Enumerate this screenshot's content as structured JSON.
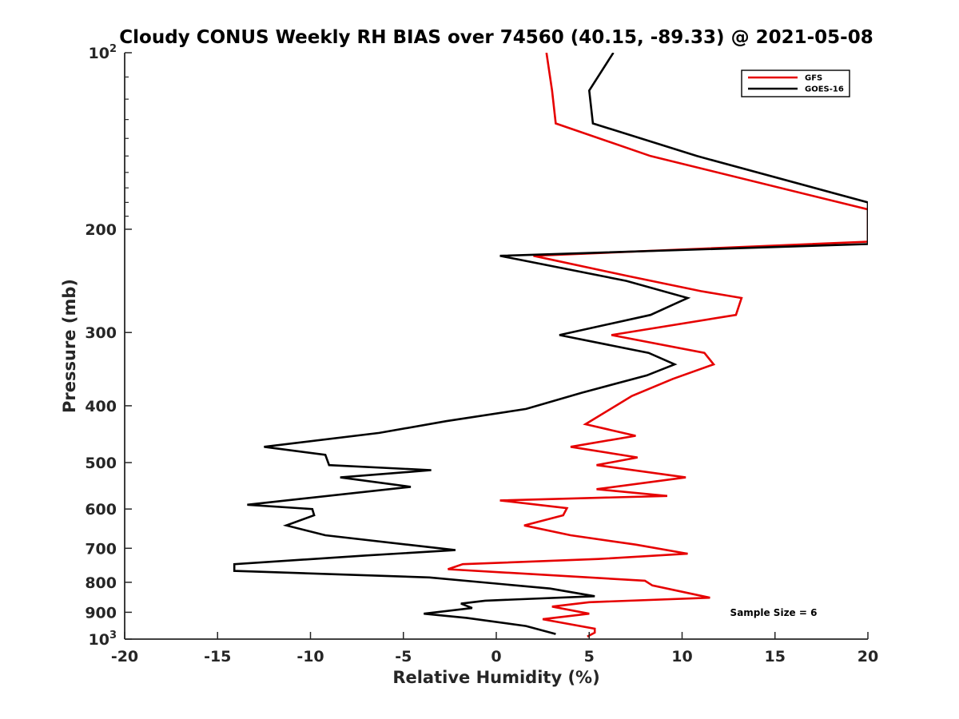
{
  "chart_data": {
    "type": "line",
    "title": "Cloudy CONUS Weekly RH BIAS over 74560 (40.15, -89.33) @ 2021-05-08",
    "xlabel": "Relative Humidity (%)",
    "ylabel": "Pressure (mb)",
    "xlim": [
      -20,
      20
    ],
    "ylim": [
      100,
      1000
    ],
    "y_scale": "log",
    "y_reversed": true,
    "grid": false,
    "legend_position": "top-right",
    "x_ticks": [
      "-20",
      "-15",
      "-10",
      "-5",
      "0",
      "5",
      "10",
      "15",
      "20"
    ],
    "y_ticks": [
      {
        "value": 100,
        "label": "10",
        "sup": "2"
      },
      {
        "value": 200,
        "label": "200"
      },
      {
        "value": 300,
        "label": "300"
      },
      {
        "value": 400,
        "label": "400"
      },
      {
        "value": 500,
        "label": "500"
      },
      {
        "value": 600,
        "label": "600"
      },
      {
        "value": 700,
        "label": "700"
      },
      {
        "value": 800,
        "label": "800"
      },
      {
        "value": 900,
        "label": "900"
      },
      {
        "value": 1000,
        "label": "10",
        "sup": "3"
      }
    ],
    "annotation": "Sample Size = 6",
    "series": [
      {
        "name": "GFS",
        "color": "#e60000",
        "points": [
          [
            2.7,
            100
          ],
          [
            3.0,
            116
          ],
          [
            3.2,
            132
          ],
          [
            8.3,
            150
          ],
          [
            20,
            185
          ],
          [
            20,
            210
          ],
          [
            2.0,
            222
          ],
          [
            7.0,
            240
          ],
          [
            11.0,
            255
          ],
          [
            13.2,
            262
          ],
          [
            12.9,
            280
          ],
          [
            6.2,
            303
          ],
          [
            11.2,
            325
          ],
          [
            11.7,
            340
          ],
          [
            9.5,
            360
          ],
          [
            7.3,
            385
          ],
          [
            4.8,
            430
          ],
          [
            7.5,
            450
          ],
          [
            4.0,
            470
          ],
          [
            7.6,
            490
          ],
          [
            5.4,
            505
          ],
          [
            10.2,
            530
          ],
          [
            5.4,
            555
          ],
          [
            9.2,
            570
          ],
          [
            0.2,
            580
          ],
          [
            3.8,
            598
          ],
          [
            3.6,
            615
          ],
          [
            1.5,
            640
          ],
          [
            4.0,
            665
          ],
          [
            7.5,
            690
          ],
          [
            10.3,
            715
          ],
          [
            5.5,
            730
          ],
          [
            -1.8,
            745
          ],
          [
            -2.6,
            760
          ],
          [
            8.0,
            795
          ],
          [
            8.4,
            810
          ],
          [
            11.5,
            850
          ],
          [
            5.0,
            865
          ],
          [
            3.0,
            880
          ],
          [
            5.0,
            905
          ],
          [
            2.5,
            925
          ],
          [
            5.3,
            960
          ],
          [
            5.3,
            975
          ],
          [
            4.9,
            990
          ]
        ]
      },
      {
        "name": "GOES-16",
        "color": "#000000",
        "points": [
          [
            6.3,
            100
          ],
          [
            5.0,
            116
          ],
          [
            5.2,
            132
          ],
          [
            10.8,
            150
          ],
          [
            20,
            180
          ],
          [
            20,
            212
          ],
          [
            0.2,
            222
          ],
          [
            7.0,
            245
          ],
          [
            10.3,
            262
          ],
          [
            8.3,
            280
          ],
          [
            3.4,
            303
          ],
          [
            8.2,
            325
          ],
          [
            9.6,
            340
          ],
          [
            8.1,
            355
          ],
          [
            4.6,
            380
          ],
          [
            1.6,
            405
          ],
          [
            -2.7,
            425
          ],
          [
            -6.3,
            445
          ],
          [
            -12.5,
            470
          ],
          [
            -9.2,
            485
          ],
          [
            -9.0,
            505
          ],
          [
            -3.5,
            515
          ],
          [
            -8.4,
            530
          ],
          [
            -4.6,
            550
          ],
          [
            -13.4,
            590
          ],
          [
            -9.9,
            600
          ],
          [
            -9.8,
            615
          ],
          [
            -11.3,
            640
          ],
          [
            -9.2,
            665
          ],
          [
            -4.8,
            690
          ],
          [
            -2.2,
            705
          ],
          [
            -7.0,
            720
          ],
          [
            -14.1,
            745
          ],
          [
            -14.1,
            765
          ],
          [
            -3.6,
            785
          ],
          [
            2.9,
            820
          ],
          [
            5.3,
            845
          ],
          [
            -0.6,
            860
          ],
          [
            -1.9,
            870
          ],
          [
            -1.3,
            885
          ],
          [
            -3.9,
            905
          ],
          [
            -1.6,
            920
          ],
          [
            1.6,
            950
          ],
          [
            3.2,
            980
          ]
        ]
      }
    ]
  }
}
